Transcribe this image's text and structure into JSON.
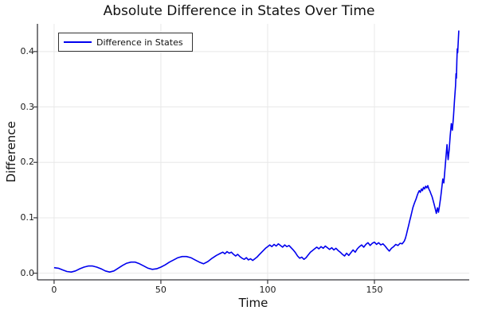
{
  "chart_data": {
    "type": "line",
    "title": "Absolute Difference in States Over Time",
    "xlabel": "Time",
    "ylabel": "Difference",
    "legend": {
      "position": "top-left",
      "entries": [
        "Difference in States"
      ]
    },
    "grid": true,
    "xlim": [
      -7.8,
      194.4
    ],
    "ylim": [
      -0.012,
      0.45
    ],
    "xticks": [
      {
        "v": 0,
        "label": "0"
      },
      {
        "v": 50,
        "label": "50"
      },
      {
        "v": 100,
        "label": "100"
      },
      {
        "v": 150,
        "label": "150"
      }
    ],
    "yticks": [
      {
        "v": 0.0,
        "label": "0.0"
      },
      {
        "v": 0.1,
        "label": "0.1"
      },
      {
        "v": 0.2,
        "label": "0.2"
      },
      {
        "v": 0.3,
        "label": "0.3"
      },
      {
        "v": 0.4,
        "label": "0.4"
      }
    ],
    "colors": {
      "line": "#0000ee",
      "grid": "#e8e8e8",
      "spine": "#36363a",
      "tick": "#36363a",
      "text": "#121212"
    },
    "series": [
      {
        "name": "Difference in States",
        "color": "#0000ee",
        "points": [
          [
            0,
            0.01
          ],
          [
            2,
            0.009
          ],
          [
            4,
            0.006
          ],
          [
            6,
            0.003
          ],
          [
            8,
            0.002
          ],
          [
            10,
            0.004
          ],
          [
            12,
            0.008
          ],
          [
            14,
            0.011
          ],
          [
            16,
            0.013
          ],
          [
            18,
            0.013
          ],
          [
            20,
            0.011
          ],
          [
            22,
            0.008
          ],
          [
            24,
            0.004
          ],
          [
            26,
            0.002
          ],
          [
            28,
            0.004
          ],
          [
            30,
            0.009
          ],
          [
            32,
            0.014
          ],
          [
            34,
            0.018
          ],
          [
            36,
            0.02
          ],
          [
            38,
            0.02
          ],
          [
            40,
            0.017
          ],
          [
            42,
            0.013
          ],
          [
            44,
            0.009
          ],
          [
            46,
            0.007
          ],
          [
            48,
            0.008
          ],
          [
            50,
            0.011
          ],
          [
            52,
            0.015
          ],
          [
            54,
            0.02
          ],
          [
            56,
            0.024
          ],
          [
            58,
            0.028
          ],
          [
            60,
            0.03
          ],
          [
            62,
            0.03
          ],
          [
            64,
            0.028
          ],
          [
            66,
            0.024
          ],
          [
            68,
            0.02
          ],
          [
            70,
            0.017
          ],
          [
            72,
            0.021
          ],
          [
            74,
            0.027
          ],
          [
            76,
            0.032
          ],
          [
            78,
            0.036
          ],
          [
            79,
            0.038
          ],
          [
            80,
            0.035
          ],
          [
            81,
            0.039
          ],
          [
            82,
            0.036
          ],
          [
            83,
            0.038
          ],
          [
            84,
            0.034
          ],
          [
            85,
            0.031
          ],
          [
            86,
            0.034
          ],
          [
            87,
            0.03
          ],
          [
            88,
            0.027
          ],
          [
            89,
            0.025
          ],
          [
            90,
            0.028
          ],
          [
            91,
            0.024
          ],
          [
            92,
            0.026
          ],
          [
            93,
            0.023
          ],
          [
            94,
            0.026
          ],
          [
            95,
            0.029
          ],
          [
            96,
            0.033
          ],
          [
            97,
            0.037
          ],
          [
            98,
            0.041
          ],
          [
            99,
            0.045
          ],
          [
            100,
            0.048
          ],
          [
            101,
            0.051
          ],
          [
            102,
            0.048
          ],
          [
            103,
            0.052
          ],
          [
            104,
            0.049
          ],
          [
            105,
            0.053
          ],
          [
            106,
            0.05
          ],
          [
            107,
            0.047
          ],
          [
            108,
            0.051
          ],
          [
            109,
            0.048
          ],
          [
            110,
            0.05
          ],
          [
            111,
            0.046
          ],
          [
            112,
            0.042
          ],
          [
            113,
            0.037
          ],
          [
            114,
            0.031
          ],
          [
            115,
            0.027
          ],
          [
            116,
            0.029
          ],
          [
            117,
            0.025
          ],
          [
            118,
            0.028
          ],
          [
            119,
            0.033
          ],
          [
            120,
            0.038
          ],
          [
            121,
            0.041
          ],
          [
            122,
            0.044
          ],
          [
            123,
            0.047
          ],
          [
            124,
            0.044
          ],
          [
            125,
            0.048
          ],
          [
            126,
            0.045
          ],
          [
            127,
            0.049
          ],
          [
            128,
            0.046
          ],
          [
            129,
            0.043
          ],
          [
            130,
            0.046
          ],
          [
            131,
            0.042
          ],
          [
            132,
            0.045
          ],
          [
            133,
            0.041
          ],
          [
            134,
            0.038
          ],
          [
            135,
            0.034
          ],
          [
            136,
            0.031
          ],
          [
            137,
            0.036
          ],
          [
            138,
            0.032
          ],
          [
            139,
            0.037
          ],
          [
            140,
            0.042
          ],
          [
            141,
            0.038
          ],
          [
            142,
            0.044
          ],
          [
            143,
            0.048
          ],
          [
            144,
            0.051
          ],
          [
            145,
            0.047
          ],
          [
            146,
            0.052
          ],
          [
            147,
            0.055
          ],
          [
            148,
            0.05
          ],
          [
            149,
            0.054
          ],
          [
            150,
            0.056
          ],
          [
            151,
            0.052
          ],
          [
            152,
            0.055
          ],
          [
            153,
            0.051
          ],
          [
            154,
            0.053
          ],
          [
            155,
            0.049
          ],
          [
            156,
            0.044
          ],
          [
            157,
            0.04
          ],
          [
            158,
            0.045
          ],
          [
            159,
            0.048
          ],
          [
            160,
            0.052
          ],
          [
            161,
            0.05
          ],
          [
            162,
            0.054
          ],
          [
            163,
            0.053
          ],
          [
            164,
            0.058
          ],
          [
            164.5,
            0.063
          ],
          [
            165,
            0.07
          ],
          [
            165.5,
            0.078
          ],
          [
            166,
            0.086
          ],
          [
            166.5,
            0.094
          ],
          [
            167,
            0.102
          ],
          [
            167.5,
            0.11
          ],
          [
            168,
            0.118
          ],
          [
            168.5,
            0.124
          ],
          [
            169,
            0.129
          ],
          [
            169.5,
            0.134
          ],
          [
            170,
            0.14
          ],
          [
            170.5,
            0.145
          ],
          [
            171,
            0.149
          ],
          [
            171.5,
            0.146
          ],
          [
            172,
            0.152
          ],
          [
            172.5,
            0.149
          ],
          [
            173,
            0.155
          ],
          [
            173.5,
            0.152
          ],
          [
            174,
            0.157
          ],
          [
            174.5,
            0.154
          ],
          [
            175,
            0.158
          ],
          [
            175.5,
            0.152
          ],
          [
            176,
            0.148
          ],
          [
            176.5,
            0.143
          ],
          [
            177,
            0.138
          ],
          [
            177.5,
            0.131
          ],
          [
            178,
            0.124
          ],
          [
            178.5,
            0.116
          ],
          [
            179,
            0.108
          ],
          [
            179.5,
            0.118
          ],
          [
            180,
            0.11
          ],
          [
            180.5,
            0.122
          ],
          [
            181,
            0.136
          ],
          [
            181.5,
            0.152
          ],
          [
            182,
            0.17
          ],
          [
            182.5,
            0.163
          ],
          [
            183,
            0.185
          ],
          [
            183.5,
            0.21
          ],
          [
            184,
            0.232
          ],
          [
            184.5,
            0.205
          ],
          [
            185,
            0.222
          ],
          [
            185.5,
            0.248
          ],
          [
            186,
            0.27
          ],
          [
            186.5,
            0.258
          ],
          [
            187,
            0.282
          ],
          [
            187.5,
            0.312
          ],
          [
            188,
            0.338
          ],
          [
            188.2,
            0.36
          ],
          [
            188.4,
            0.352
          ],
          [
            188.6,
            0.385
          ],
          [
            188.8,
            0.405
          ],
          [
            189,
            0.398
          ],
          [
            189.2,
            0.415
          ],
          [
            189.5,
            0.438
          ]
        ]
      }
    ]
  }
}
